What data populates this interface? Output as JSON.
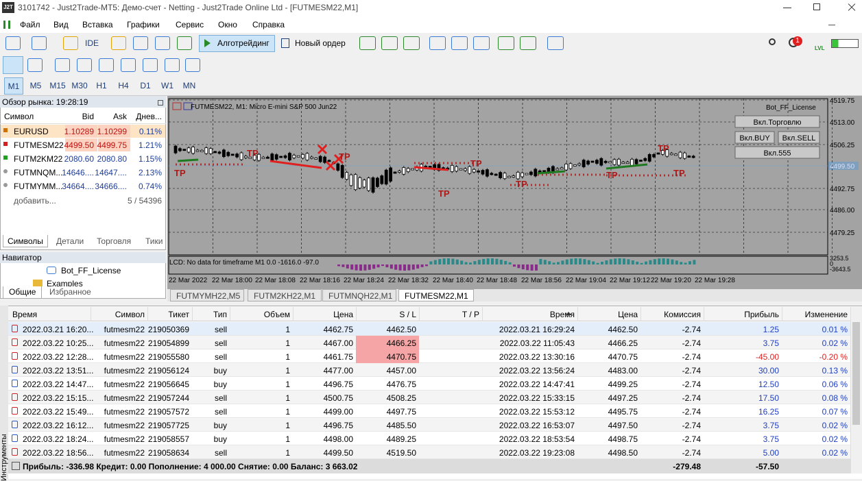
{
  "window": {
    "icon": "J2T",
    "title": "3101742 - Just2Trade-MT5: Демо-счет - Netting - Just2Trade Online Ltd - [FUTMESM22,M1]"
  },
  "menu": [
    "Файл",
    "Вид",
    "Вставка",
    "Графики",
    "Сервис",
    "Окно",
    "Справка"
  ],
  "toolbar": {
    "ide": "IDE",
    "algo": "Алготрейдинг",
    "new_order": "Новый ордер",
    "notifications": "1",
    "lvl": "LVL"
  },
  "timeframes": [
    "M1",
    "M5",
    "M15",
    "M30",
    "H1",
    "H4",
    "D1",
    "W1",
    "MN"
  ],
  "market_watch": {
    "title": "Обзор рынка: 19:28:19",
    "columns": [
      "Символ",
      "Bid",
      "Ask",
      "Днев..."
    ],
    "rows": [
      [
        "EURUSD",
        "1.10289",
        "1.10299",
        "0.11%"
      ],
      [
        "FUTMESM22",
        "4499.50",
        "4499.75",
        "1.21%"
      ],
      [
        "FUTM2KM22",
        "2080.60",
        "2080.80",
        "1.15%"
      ],
      [
        "FUTMNQM...",
        "14646....",
        "14647....",
        "2.13%"
      ],
      [
        "FUTMYMM...",
        "34664....",
        "34666....",
        "0.74%"
      ]
    ],
    "add": "добавить...",
    "count": "5 / 54396",
    "tabs": [
      "Символы",
      "Детали",
      "Торговля",
      "Тики"
    ]
  },
  "navigator": {
    "title": "Навигатор",
    "items": [
      "Bot_FF_License",
      "Examples"
    ],
    "tabs": [
      "Общие",
      "Избранное"
    ]
  },
  "chart": {
    "title": "FUTMESM22, M1:  Micro E-mini S&P 500 Jun22",
    "expert": "Bot_FF_License",
    "buttons": [
      "Вкл.Торговлю",
      "Вкл.BUY",
      "Вкл.SELL",
      "Вкл.555"
    ],
    "price_labels": [
      "4519.75",
      "4513.00",
      "4506.25",
      "4492.75",
      "4486.00",
      "4479.25"
    ],
    "current_price": "4499.50",
    "indicator": "LCD: No data for timeframe M1 0.0 -1616.0 -97.0",
    "indicator_scale": [
      "3253.5",
      "0",
      "-3643.5"
    ],
    "time_labels": [
      "22 Mar 2022",
      "22 Mar 18:00",
      "22 Mar 18:08",
      "22 Mar 18:16",
      "22 Mar 18:24",
      "22 Mar 18:32",
      "22 Mar 18:40",
      "22 Mar 18:48",
      "22 Mar 18:56",
      "22 Mar 19:04",
      "22 Mar 19:12",
      "22 Mar 19:20",
      "22 Mar 19:28"
    ],
    "tp_labels": [
      "TP",
      "TP",
      "TP",
      "TP",
      "TP",
      "TP",
      "TP",
      "TP",
      "TP"
    ]
  },
  "chart_tabs": [
    "FUTMYMH22,M5",
    "FUTM2KH22,M1",
    "FUTMNQH22,M1",
    "FUTMESM22,M1"
  ],
  "trades": {
    "columns": [
      "Время",
      "Символ",
      "Тикет",
      "Тип",
      "Объем",
      "Цена",
      "S / L",
      "T / P",
      "Время",
      "Цена",
      "Комиссия",
      "Прибыль",
      "Изменение"
    ],
    "rows": [
      [
        "2022.03.21 16:20...",
        "futmesm22",
        "219050369",
        "sell",
        "1",
        "4462.75",
        "4462.50",
        null,
        "2022.03.21 16:29:24",
        "4462.50",
        "-2.74",
        "1.25",
        "0.01 %"
      ],
      [
        "2022.03.22 10:25...",
        "futmesm22",
        "219054899",
        "sell",
        "1",
        "4467.00",
        "4466.25",
        null,
        "2022.03.22 11:05:43",
        "4466.25",
        "-2.74",
        "3.75",
        "0.02 %"
      ],
      [
        "2022.03.22 12:28...",
        "futmesm22",
        "219055580",
        "sell",
        "1",
        "4461.75",
        "4470.75",
        null,
        "2022.03.22 13:30:16",
        "4470.75",
        "-2.74",
        "-45.00",
        "-0.20 %"
      ],
      [
        "2022.03.22 13:51...",
        "futmesm22",
        "219056124",
        "buy",
        "1",
        "4477.00",
        "4457.00",
        null,
        "2022.03.22 13:56:24",
        "4483.00",
        "-2.74",
        "30.00",
        "0.13 %"
      ],
      [
        "2022.03.22 14:47...",
        "futmesm22",
        "219056645",
        "buy",
        "1",
        "4496.75",
        "4476.75",
        null,
        "2022.03.22 14:47:41",
        "4499.25",
        "-2.74",
        "12.50",
        "0.06 %"
      ],
      [
        "2022.03.22 15:15...",
        "futmesm22",
        "219057244",
        "sell",
        "1",
        "4500.75",
        "4508.25",
        null,
        "2022.03.22 15:33:15",
        "4497.25",
        "-2.74",
        "17.50",
        "0.08 %"
      ],
      [
        "2022.03.22 15:49...",
        "futmesm22",
        "219057572",
        "sell",
        "1",
        "4499.00",
        "4497.75",
        null,
        "2022.03.22 15:53:12",
        "4495.75",
        "-2.74",
        "16.25",
        "0.07 %"
      ],
      [
        "2022.03.22 16:12...",
        "futmesm22",
        "219057725",
        "buy",
        "1",
        "4496.75",
        "4485.50",
        null,
        "2022.03.22 16:53:07",
        "4497.50",
        "-2.74",
        "3.75",
        "0.02 %"
      ],
      [
        "2022.03.22 18:24...",
        "futmesm22",
        "219058557",
        "buy",
        "1",
        "4498.00",
        "4489.25",
        null,
        "2022.03.22 18:53:54",
        "4498.75",
        "-2.74",
        "3.75",
        "0.02 %"
      ],
      [
        "2022.03.22 18:56...",
        "futmesm22",
        "219058634",
        "sell",
        "1",
        "4499.50",
        "4519.50",
        null,
        "2022.03.22 19:23:08",
        "4498.50",
        "-2.74",
        "5.00",
        "0.02 %"
      ]
    ],
    "summary": {
      "text": "Прибыль: -336.98  Кредит: 0.00  Пополнение: 4 000.00  Снятие: 0.00  Баланс: 3 663.02",
      "commission": "-279.48",
      "profit": "-57.50"
    }
  },
  "side_label": "Инструменты"
}
